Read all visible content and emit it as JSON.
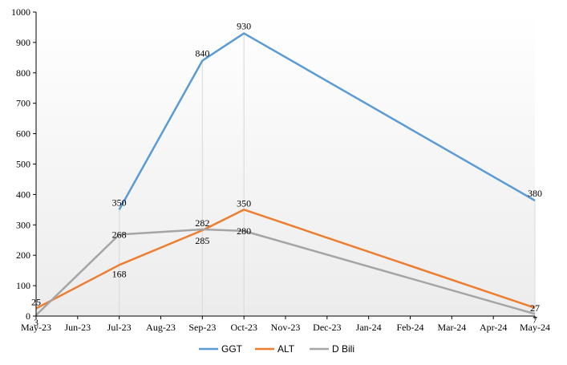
{
  "chart_data": {
    "type": "line",
    "categories": [
      "May-23",
      "Jun-23",
      "Jul-23",
      "Aug-23",
      "Sep-23",
      "Oct-23",
      "Nov-23",
      "Dec-23",
      "Jan-24",
      "Feb-24",
      "Mar-24",
      "Apr-24",
      "May-24"
    ],
    "ylim": [
      0,
      1000
    ],
    "yticks": [
      0,
      100,
      200,
      300,
      400,
      500,
      600,
      700,
      800,
      900,
      1000
    ],
    "grid": "vertical drop lines at data points",
    "legend_position": "bottom-center",
    "series": [
      {
        "name": "GGT",
        "color": "#5b9bd5",
        "points": [
          {
            "category": "Jul-23",
            "value": 350
          },
          {
            "category": "Sep-23",
            "value": 840
          },
          {
            "category": "Oct-23",
            "value": 930
          },
          {
            "category": "May-24",
            "value": 380
          }
        ]
      },
      {
        "name": "ALT",
        "color": "#ed7d31",
        "points": [
          {
            "category": "May-23",
            "value": 25
          },
          {
            "category": "Jul-23",
            "value": 168
          },
          {
            "category": "Sep-23",
            "value": 282
          },
          {
            "category": "Oct-23",
            "value": 350
          },
          {
            "category": "May-24",
            "value": 27
          }
        ]
      },
      {
        "name": "D Bili",
        "color": "#a5a5a5",
        "points": [
          {
            "category": "May-23",
            "value": 3
          },
          {
            "category": "Jul-23",
            "value": 268
          },
          {
            "category": "Sep-23",
            "value": 285
          },
          {
            "category": "Oct-23",
            "value": 280
          },
          {
            "category": "May-24",
            "value": 7
          }
        ]
      }
    ]
  }
}
